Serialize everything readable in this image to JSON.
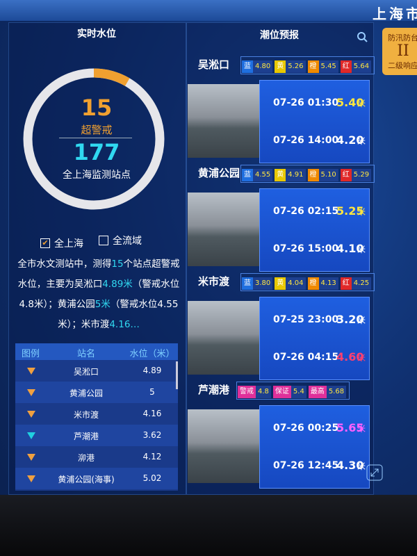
{
  "header": {
    "region": "上海市",
    "badge": {
      "top": "防汛防台",
      "level": "II",
      "bottom": "二级响应"
    }
  },
  "left": {
    "title": "实时水位",
    "gauge": {
      "alert_count": 15,
      "alert_label": "超警戒",
      "total": 177,
      "total_label": "全上海监测站点"
    },
    "filters": [
      {
        "label": "全上海",
        "checked": true
      },
      {
        "label": "全流域",
        "checked": false
      }
    ],
    "summary": [
      {
        "text": "全市水文测站中，测得",
        "highlight": false
      },
      {
        "text": "15",
        "highlight": true
      },
      {
        "text": "个站点超警戒水位，主要为吴淞口",
        "highlight": false
      },
      {
        "text": "4.89米",
        "highlight": true
      },
      {
        "text": "（警戒水位4.8米）；黄浦公园",
        "highlight": false
      },
      {
        "text": "5米",
        "highlight": true
      },
      {
        "text": "（警戒水位4.55米）；米市渡",
        "highlight": false
      },
      {
        "text": "4.16…",
        "highlight": true
      }
    ],
    "table": {
      "headers": [
        "图例",
        "站名",
        "水位（米）"
      ],
      "rows": [
        {
          "icon_color": "#f0a040",
          "name": "吴淞口",
          "level": "4.89"
        },
        {
          "icon_color": "#f0a040",
          "name": "黄浦公园",
          "level": "5"
        },
        {
          "icon_color": "#f0a040",
          "name": "米市渡",
          "level": "4.16"
        },
        {
          "icon_color": "#20d0e0",
          "name": "芦潮港",
          "level": "3.62"
        },
        {
          "icon_color": "#f0a040",
          "name": "泖港",
          "level": "4.12"
        },
        {
          "icon_color": "#f0a040",
          "name": "黄浦公园(海事)",
          "level": "5.02"
        }
      ]
    }
  },
  "right": {
    "title": "潮位预报",
    "unit": "米",
    "stations": [
      {
        "name": "吴淞口",
        "thresholds": [
          {
            "label": "蓝",
            "value": "4.80",
            "color": "#1f6fe0"
          },
          {
            "label": "黄",
            "value": "5.26",
            "color": "#e8c800"
          },
          {
            "label": "橙",
            "value": "5.45",
            "color": "#f08a00"
          },
          {
            "label": "红",
            "value": "5.64",
            "color": "#e02828"
          }
        ],
        "forecasts": [
          {
            "time": "07-26 01:30",
            "value": "5.40",
            "color": "#ffe640"
          },
          {
            "time": "07-26 14:00",
            "value": "4.20",
            "color": "#ffffff"
          }
        ]
      },
      {
        "name": "黄浦公园",
        "thresholds": [
          {
            "label": "蓝",
            "value": "4.55",
            "color": "#1f6fe0"
          },
          {
            "label": "黄",
            "value": "4.91",
            "color": "#e8c800"
          },
          {
            "label": "橙",
            "value": "5.10",
            "color": "#f08a00"
          },
          {
            "label": "红",
            "value": "5.29",
            "color": "#e02828"
          }
        ],
        "forecasts": [
          {
            "time": "07-26 02:15",
            "value": "5.25",
            "color": "#ffe640"
          },
          {
            "time": "07-26 15:00",
            "value": "4.10",
            "color": "#ffffff"
          }
        ]
      },
      {
        "name": "米市渡",
        "thresholds": [
          {
            "label": "蓝",
            "value": "3.80",
            "color": "#1f6fe0"
          },
          {
            "label": "黄",
            "value": "4.04",
            "color": "#e8c800"
          },
          {
            "label": "橙",
            "value": "4.13",
            "color": "#f08a00"
          },
          {
            "label": "红",
            "value": "4.25",
            "color": "#e02828"
          }
        ],
        "forecasts": [
          {
            "time": "07-25 23:00",
            "value": "3.20",
            "color": "#ffffff"
          },
          {
            "time": "07-26 04:15",
            "value": "4.60",
            "color": "#ff4070"
          }
        ]
      },
      {
        "name": "芦潮港",
        "thresholds": [
          {
            "label": "警戒",
            "value": "4.8",
            "color": "#e0309a"
          },
          {
            "label": "保证",
            "value": "5.4",
            "color": "#e0309a"
          },
          {
            "label": "最高",
            "value": "5.68",
            "color": "#e0309a"
          }
        ],
        "forecasts": [
          {
            "time": "07-26 00:25",
            "value": "5.65",
            "color": "#ff60ff"
          },
          {
            "time": "07-26 12:45",
            "value": "4.30",
            "color": "#ffffff"
          }
        ]
      }
    ]
  }
}
